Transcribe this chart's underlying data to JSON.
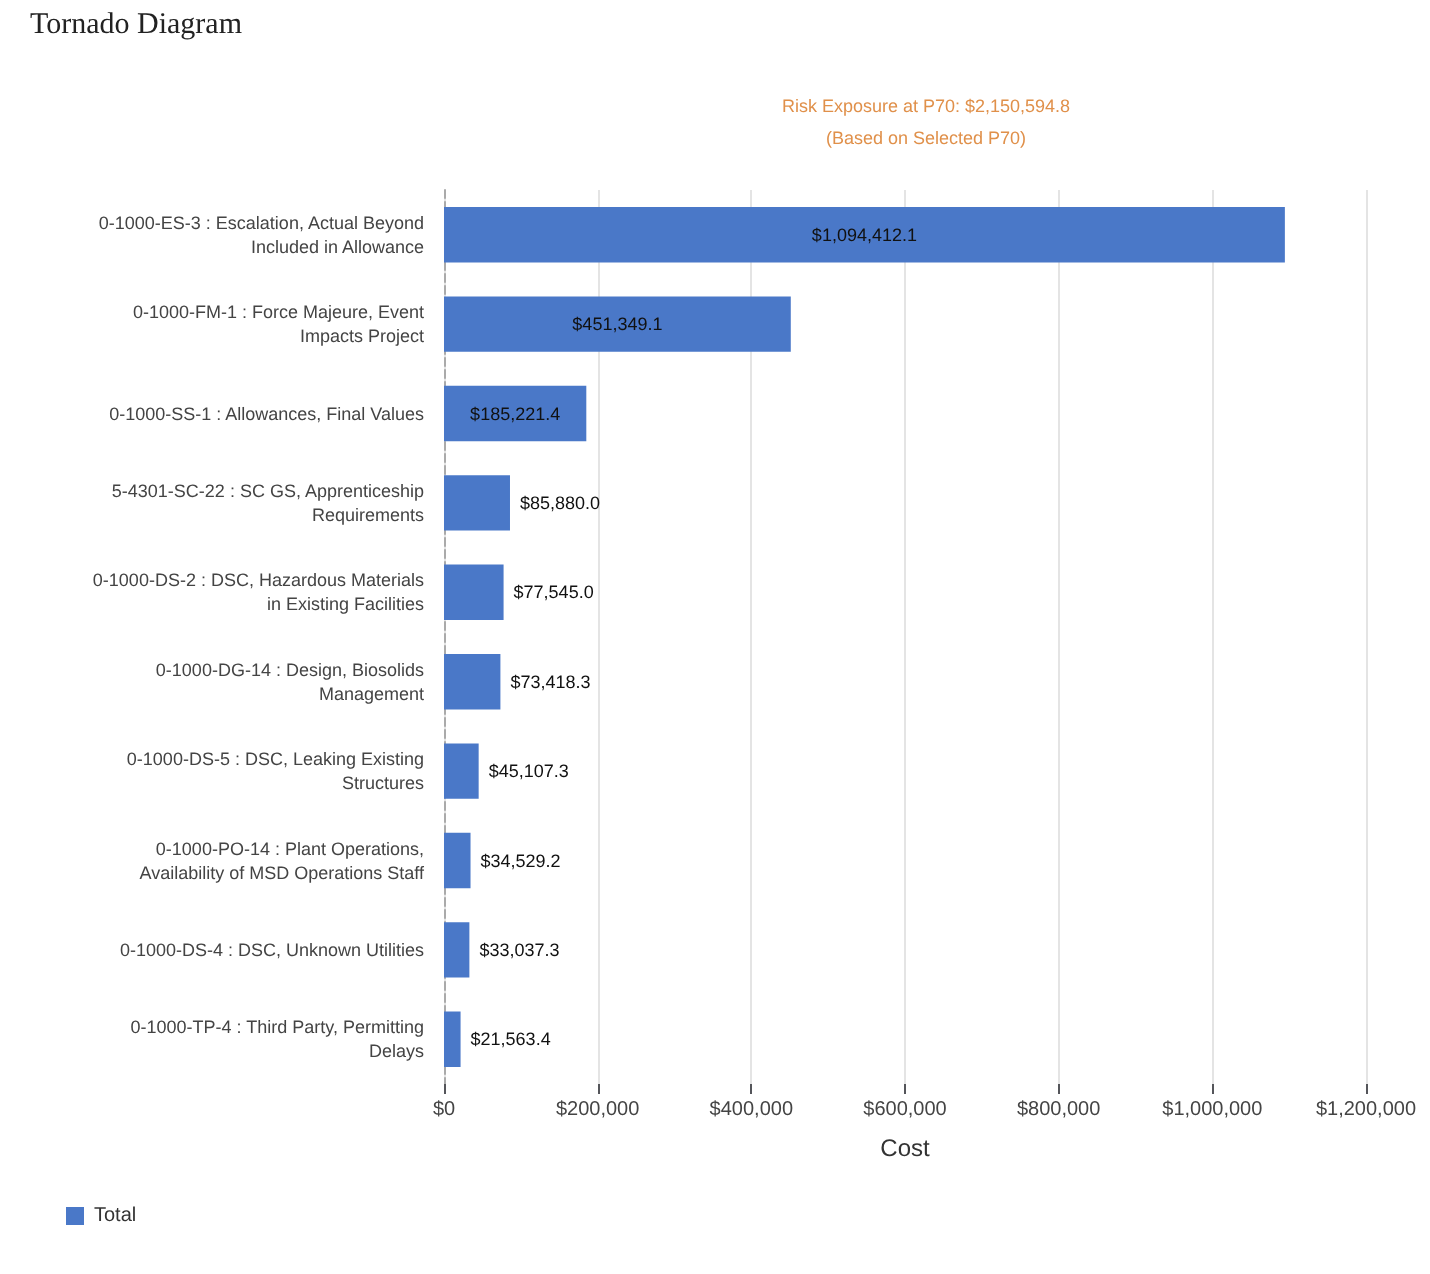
{
  "chart_data": {
    "type": "bar",
    "orientation": "horizontal",
    "title": "Tornado Diagram",
    "subtitle": "Risk Exposure at P70: $2,150,594.8\n(Based on Selected P70)",
    "xlabel": "Cost",
    "categories": [
      "0-1000-ES-3 : Escalation, Actual Beyond\nIncluded in Allowance",
      "0-1000-FM-1 : Force Majeure, Event\nImpacts Project",
      "0-1000-SS-1 : Allowances, Final Values",
      "5-4301-SC-22 : SC GS, Apprenticeship\nRequirements",
      "0-1000-DS-2 : DSC, Hazardous Materials\nin Existing Facilities",
      "0-1000-DG-14 : Design, Biosolids\nManagement",
      "0-1000-DS-5 : DSC, Leaking Existing\nStructures",
      "0-1000-PO-14 : Plant Operations,\nAvailability of MSD Operations Staff",
      "0-1000-DS-4 : DSC, Unknown Utilities",
      "0-1000-TP-4 : Third Party, Permitting\nDelays"
    ],
    "series": [
      {
        "name": "Total",
        "color": "#4a78c8",
        "values": [
          1094412.1,
          451349.1,
          185221.4,
          85880.0,
          77545.0,
          73418.3,
          45107.3,
          34529.2,
          33037.3,
          21563.4
        ],
        "value_labels": [
          "$1,094,412.1",
          "$451,349.1",
          "$185,221.4",
          "$85,880.0",
          "$77,545.0",
          "$73,418.3",
          "$45,107.3",
          "$34,529.2",
          "$33,037.3",
          "$21,563.4"
        ]
      }
    ],
    "xlim": [
      0,
      1200000
    ],
    "xticks": [
      {
        "value": 0,
        "label": "$0"
      },
      {
        "value": 200000,
        "label": "$200,000"
      },
      {
        "value": 400000,
        "label": "$400,000"
      },
      {
        "value": 600000,
        "label": "$600,000"
      },
      {
        "value": 800000,
        "label": "$800,000"
      },
      {
        "value": 1000000,
        "label": "$1,000,000"
      },
      {
        "value": 1200000,
        "label": "$1,200,000"
      }
    ],
    "grid": "x",
    "legend": "bottom left"
  }
}
